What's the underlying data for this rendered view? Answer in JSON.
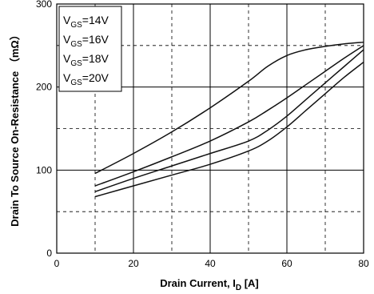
{
  "chart_data": {
    "type": "line",
    "title": "",
    "xlabel": {
      "main": "Drain Current, I",
      "sub": "D",
      "unit": " [A]"
    },
    "ylabel": "Drain To Source On-Resistance （mΩ）",
    "xlim": [
      0,
      80
    ],
    "ylim": [
      0,
      300
    ],
    "x_ticks": [
      "0",
      "20",
      "40",
      "60",
      "80"
    ],
    "y_ticks": [
      "0",
      "100",
      "200",
      "300"
    ],
    "grid": {
      "major": "solid",
      "minor": "dashed"
    },
    "legend_position": "top-left",
    "series": [
      {
        "name": "V_GS=14V",
        "label_main": "V",
        "label_sub": "GS",
        "label_value": "=14V",
        "x": [
          10,
          20,
          30,
          40,
          50,
          55,
          60,
          65,
          70,
          75,
          80
        ],
        "y": [
          96,
          120,
          146,
          175,
          207,
          225,
          238,
          245,
          249,
          252,
          254
        ]
      },
      {
        "name": "V_GS=16V",
        "label_main": "V",
        "label_sub": "GS",
        "label_value": "=16V",
        "x": [
          10,
          20,
          30,
          40,
          50,
          55,
          60,
          65,
          70,
          75,
          80
        ],
        "y": [
          81,
          98,
          116,
          135,
          158,
          172,
          187,
          203,
          219,
          235,
          250
        ]
      },
      {
        "name": "V_GS=18V",
        "label_main": "V",
        "label_sub": "GS",
        "label_value": "=18V",
        "x": [
          10,
          20,
          30,
          40,
          50,
          55,
          60,
          65,
          70,
          75,
          80
        ],
        "y": [
          74,
          90,
          105,
          120,
          135,
          148,
          165,
          185,
          205,
          225,
          245
        ]
      },
      {
        "name": "V_GS=20V",
        "label_main": "V",
        "label_sub": "GS",
        "label_value": "=20V",
        "x": [
          10,
          20,
          30,
          40,
          50,
          55,
          60,
          65,
          70,
          75,
          80
        ],
        "y": [
          68,
          81,
          94,
          107,
          123,
          135,
          152,
          172,
          192,
          212,
          230
        ]
      }
    ]
  }
}
